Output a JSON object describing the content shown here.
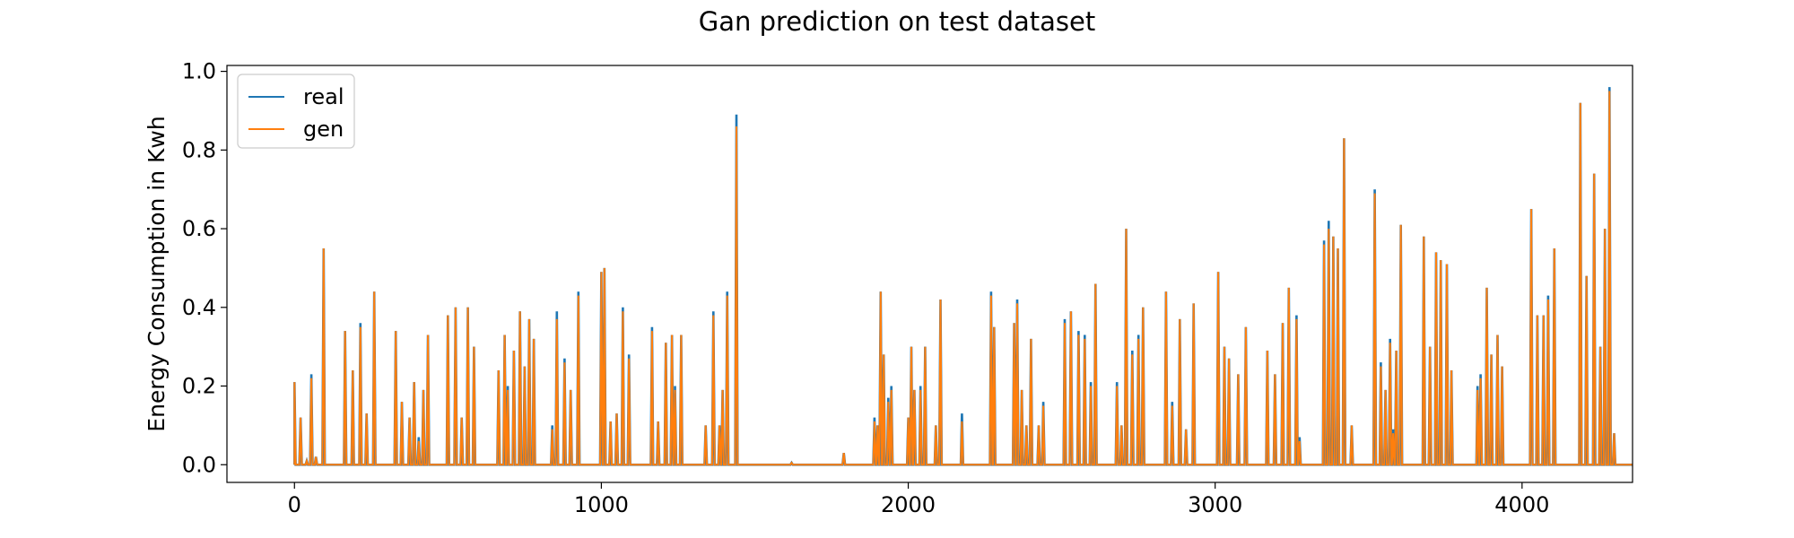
{
  "chart_data": {
    "type": "line",
    "title": "Gan prediction on test dataset",
    "xlabel": "",
    "ylabel": "Energy Consumption in Kwh",
    "xlim": [
      -220,
      4360
    ],
    "ylim": [
      -0.045,
      1.015
    ],
    "xticks": [
      0,
      1000,
      2000,
      3000,
      4000
    ],
    "xtick_labels": [
      "0",
      "1000",
      "2000",
      "3000",
      "4000"
    ],
    "yticks": [
      0.0,
      0.2,
      0.4,
      0.6,
      0.8,
      1.0
    ],
    "ytick_labels": [
      "0.0",
      "0.2",
      "0.4",
      "0.6",
      "0.8",
      "1.0"
    ],
    "grid": false,
    "legend_position": "top-left",
    "x_range": [
      0,
      4360
    ],
    "series": [
      {
        "name": "real",
        "color": "#1f77b4",
        "peaks": [
          [
            0,
            0.21
          ],
          [
            20,
            0.12
          ],
          [
            40,
            0.01
          ],
          [
            55,
            0.23
          ],
          [
            70,
            0.02
          ],
          [
            95,
            0.55
          ],
          [
            165,
            0.34
          ],
          [
            190,
            0.24
          ],
          [
            215,
            0.36
          ],
          [
            235,
            0.13
          ],
          [
            260,
            0.44
          ],
          [
            330,
            0.34
          ],
          [
            350,
            0.16
          ],
          [
            375,
            0.12
          ],
          [
            390,
            0.21
          ],
          [
            405,
            0.07
          ],
          [
            420,
            0.19
          ],
          [
            435,
            0.33
          ],
          [
            500,
            0.38
          ],
          [
            525,
            0.4
          ],
          [
            545,
            0.12
          ],
          [
            565,
            0.4
          ],
          [
            585,
            0.3
          ],
          [
            665,
            0.24
          ],
          [
            685,
            0.33
          ],
          [
            695,
            0.2
          ],
          [
            715,
            0.29
          ],
          [
            735,
            0.39
          ],
          [
            750,
            0.25
          ],
          [
            765,
            0.37
          ],
          [
            780,
            0.32
          ],
          [
            840,
            0.1
          ],
          [
            855,
            0.39
          ],
          [
            880,
            0.27
          ],
          [
            900,
            0.19
          ],
          [
            925,
            0.44
          ],
          [
            1000,
            0.49
          ],
          [
            1010,
            0.5
          ],
          [
            1030,
            0.11
          ],
          [
            1050,
            0.13
          ],
          [
            1070,
            0.4
          ],
          [
            1090,
            0.28
          ],
          [
            1165,
            0.35
          ],
          [
            1185,
            0.11
          ],
          [
            1210,
            0.31
          ],
          [
            1230,
            0.33
          ],
          [
            1240,
            0.2
          ],
          [
            1260,
            0.33
          ],
          [
            1340,
            0.1
          ],
          [
            1365,
            0.39
          ],
          [
            1385,
            0.1
          ],
          [
            1395,
            0.19
          ],
          [
            1410,
            0.44
          ],
          [
            1440,
            0.89
          ],
          [
            1620,
            0.005
          ],
          [
            1790,
            0.03
          ],
          [
            1890,
            0.12
          ],
          [
            1900,
            0.1
          ],
          [
            1910,
            0.44
          ],
          [
            1920,
            0.28
          ],
          [
            1935,
            0.17
          ],
          [
            1945,
            0.2
          ],
          [
            2000,
            0.12
          ],
          [
            2010,
            0.3
          ],
          [
            2020,
            0.19
          ],
          [
            2040,
            0.2
          ],
          [
            2055,
            0.3
          ],
          [
            2090,
            0.1
          ],
          [
            2105,
            0.42
          ],
          [
            2175,
            0.13
          ],
          [
            2270,
            0.44
          ],
          [
            2280,
            0.35
          ],
          [
            2345,
            0.36
          ],
          [
            2355,
            0.42
          ],
          [
            2370,
            0.19
          ],
          [
            2385,
            0.1
          ],
          [
            2400,
            0.32
          ],
          [
            2425,
            0.1
          ],
          [
            2440,
            0.16
          ],
          [
            2510,
            0.37
          ],
          [
            2530,
            0.39
          ],
          [
            2555,
            0.34
          ],
          [
            2575,
            0.33
          ],
          [
            2595,
            0.21
          ],
          [
            2610,
            0.46
          ],
          [
            2680,
            0.21
          ],
          [
            2695,
            0.1
          ],
          [
            2710,
            0.6
          ],
          [
            2730,
            0.29
          ],
          [
            2750,
            0.33
          ],
          [
            2765,
            0.4
          ],
          [
            2840,
            0.44
          ],
          [
            2860,
            0.16
          ],
          [
            2885,
            0.37
          ],
          [
            2905,
            0.09
          ],
          [
            2930,
            0.41
          ],
          [
            3010,
            0.49
          ],
          [
            3030,
            0.3
          ],
          [
            3045,
            0.27
          ],
          [
            3075,
            0.23
          ],
          [
            3100,
            0.35
          ],
          [
            3170,
            0.29
          ],
          [
            3195,
            0.23
          ],
          [
            3220,
            0.36
          ],
          [
            3240,
            0.45
          ],
          [
            3265,
            0.38
          ],
          [
            3275,
            0.07
          ],
          [
            3355,
            0.57
          ],
          [
            3370,
            0.62
          ],
          [
            3385,
            0.58
          ],
          [
            3400,
            0.55
          ],
          [
            3420,
            0.83
          ],
          [
            3445,
            0.1
          ],
          [
            3520,
            0.7
          ],
          [
            3540,
            0.26
          ],
          [
            3555,
            0.19
          ],
          [
            3570,
            0.32
          ],
          [
            3580,
            0.09
          ],
          [
            3590,
            0.29
          ],
          [
            3605,
            0.61
          ],
          [
            3680,
            0.58
          ],
          [
            3700,
            0.3
          ],
          [
            3720,
            0.54
          ],
          [
            3735,
            0.52
          ],
          [
            3755,
            0.51
          ],
          [
            3770,
            0.24
          ],
          [
            3855,
            0.2
          ],
          [
            3865,
            0.23
          ],
          [
            3885,
            0.45
          ],
          [
            3900,
            0.28
          ],
          [
            3920,
            0.33
          ],
          [
            3935,
            0.25
          ],
          [
            4030,
            0.65
          ],
          [
            4050,
            0.38
          ],
          [
            4070,
            0.38
          ],
          [
            4085,
            0.43
          ],
          [
            4105,
            0.55
          ],
          [
            4190,
            0.92
          ],
          [
            4210,
            0.48
          ],
          [
            4235,
            0.74
          ],
          [
            4255,
            0.3
          ],
          [
            4270,
            0.6
          ],
          [
            4285,
            0.96
          ],
          [
            4300,
            0.08
          ]
        ]
      },
      {
        "name": "gen",
        "color": "#ff7f0e",
        "peaks": [
          [
            0,
            0.21
          ],
          [
            20,
            0.12
          ],
          [
            40,
            0.01
          ],
          [
            55,
            0.22
          ],
          [
            70,
            0.02
          ],
          [
            95,
            0.55
          ],
          [
            165,
            0.34
          ],
          [
            190,
            0.24
          ],
          [
            215,
            0.35
          ],
          [
            235,
            0.13
          ],
          [
            260,
            0.44
          ],
          [
            330,
            0.34
          ],
          [
            350,
            0.16
          ],
          [
            375,
            0.12
          ],
          [
            390,
            0.21
          ],
          [
            405,
            0.06
          ],
          [
            420,
            0.19
          ],
          [
            435,
            0.33
          ],
          [
            500,
            0.38
          ],
          [
            525,
            0.4
          ],
          [
            545,
            0.12
          ],
          [
            565,
            0.4
          ],
          [
            585,
            0.3
          ],
          [
            665,
            0.24
          ],
          [
            685,
            0.33
          ],
          [
            695,
            0.19
          ],
          [
            715,
            0.29
          ],
          [
            735,
            0.39
          ],
          [
            750,
            0.25
          ],
          [
            765,
            0.37
          ],
          [
            780,
            0.32
          ],
          [
            840,
            0.09
          ],
          [
            855,
            0.37
          ],
          [
            880,
            0.26
          ],
          [
            900,
            0.19
          ],
          [
            925,
            0.43
          ],
          [
            1000,
            0.49
          ],
          [
            1010,
            0.5
          ],
          [
            1030,
            0.11
          ],
          [
            1050,
            0.13
          ],
          [
            1070,
            0.39
          ],
          [
            1090,
            0.27
          ],
          [
            1165,
            0.34
          ],
          [
            1185,
            0.11
          ],
          [
            1210,
            0.31
          ],
          [
            1230,
            0.33
          ],
          [
            1240,
            0.19
          ],
          [
            1260,
            0.33
          ],
          [
            1340,
            0.1
          ],
          [
            1365,
            0.38
          ],
          [
            1385,
            0.1
          ],
          [
            1395,
            0.19
          ],
          [
            1410,
            0.43
          ],
          [
            1440,
            0.86
          ],
          [
            1620,
            0.005
          ],
          [
            1790,
            0.03
          ],
          [
            1890,
            0.11
          ],
          [
            1900,
            0.1
          ],
          [
            1910,
            0.44
          ],
          [
            1920,
            0.28
          ],
          [
            1935,
            0.16
          ],
          [
            1945,
            0.19
          ],
          [
            2000,
            0.12
          ],
          [
            2010,
            0.3
          ],
          [
            2020,
            0.19
          ],
          [
            2040,
            0.19
          ],
          [
            2055,
            0.3
          ],
          [
            2090,
            0.1
          ],
          [
            2105,
            0.42
          ],
          [
            2175,
            0.11
          ],
          [
            2270,
            0.43
          ],
          [
            2280,
            0.35
          ],
          [
            2345,
            0.36
          ],
          [
            2355,
            0.41
          ],
          [
            2370,
            0.19
          ],
          [
            2385,
            0.1
          ],
          [
            2400,
            0.32
          ],
          [
            2425,
            0.1
          ],
          [
            2440,
            0.15
          ],
          [
            2510,
            0.36
          ],
          [
            2530,
            0.39
          ],
          [
            2555,
            0.33
          ],
          [
            2575,
            0.32
          ],
          [
            2595,
            0.2
          ],
          [
            2610,
            0.46
          ],
          [
            2680,
            0.2
          ],
          [
            2695,
            0.1
          ],
          [
            2710,
            0.6
          ],
          [
            2730,
            0.28
          ],
          [
            2750,
            0.32
          ],
          [
            2765,
            0.4
          ],
          [
            2840,
            0.44
          ],
          [
            2860,
            0.15
          ],
          [
            2885,
            0.37
          ],
          [
            2905,
            0.09
          ],
          [
            2930,
            0.41
          ],
          [
            3010,
            0.49
          ],
          [
            3030,
            0.3
          ],
          [
            3045,
            0.27
          ],
          [
            3075,
            0.23
          ],
          [
            3100,
            0.35
          ],
          [
            3170,
            0.29
          ],
          [
            3195,
            0.23
          ],
          [
            3220,
            0.36
          ],
          [
            3240,
            0.45
          ],
          [
            3265,
            0.37
          ],
          [
            3275,
            0.06
          ],
          [
            3355,
            0.56
          ],
          [
            3370,
            0.6
          ],
          [
            3385,
            0.58
          ],
          [
            3400,
            0.55
          ],
          [
            3420,
            0.83
          ],
          [
            3445,
            0.1
          ],
          [
            3520,
            0.69
          ],
          [
            3540,
            0.25
          ],
          [
            3555,
            0.19
          ],
          [
            3570,
            0.31
          ],
          [
            3580,
            0.08
          ],
          [
            3590,
            0.29
          ],
          [
            3605,
            0.61
          ],
          [
            3680,
            0.58
          ],
          [
            3700,
            0.3
          ],
          [
            3720,
            0.54
          ],
          [
            3735,
            0.52
          ],
          [
            3755,
            0.51
          ],
          [
            3770,
            0.24
          ],
          [
            3855,
            0.19
          ],
          [
            3865,
            0.22
          ],
          [
            3885,
            0.45
          ],
          [
            3900,
            0.28
          ],
          [
            3920,
            0.33
          ],
          [
            3935,
            0.25
          ],
          [
            4030,
            0.65
          ],
          [
            4050,
            0.38
          ],
          [
            4070,
            0.38
          ],
          [
            4085,
            0.42
          ],
          [
            4105,
            0.55
          ],
          [
            4190,
            0.92
          ],
          [
            4210,
            0.48
          ],
          [
            4235,
            0.74
          ],
          [
            4255,
            0.3
          ],
          [
            4270,
            0.6
          ],
          [
            4285,
            0.95
          ],
          [
            4300,
            0.08
          ]
        ]
      }
    ]
  }
}
